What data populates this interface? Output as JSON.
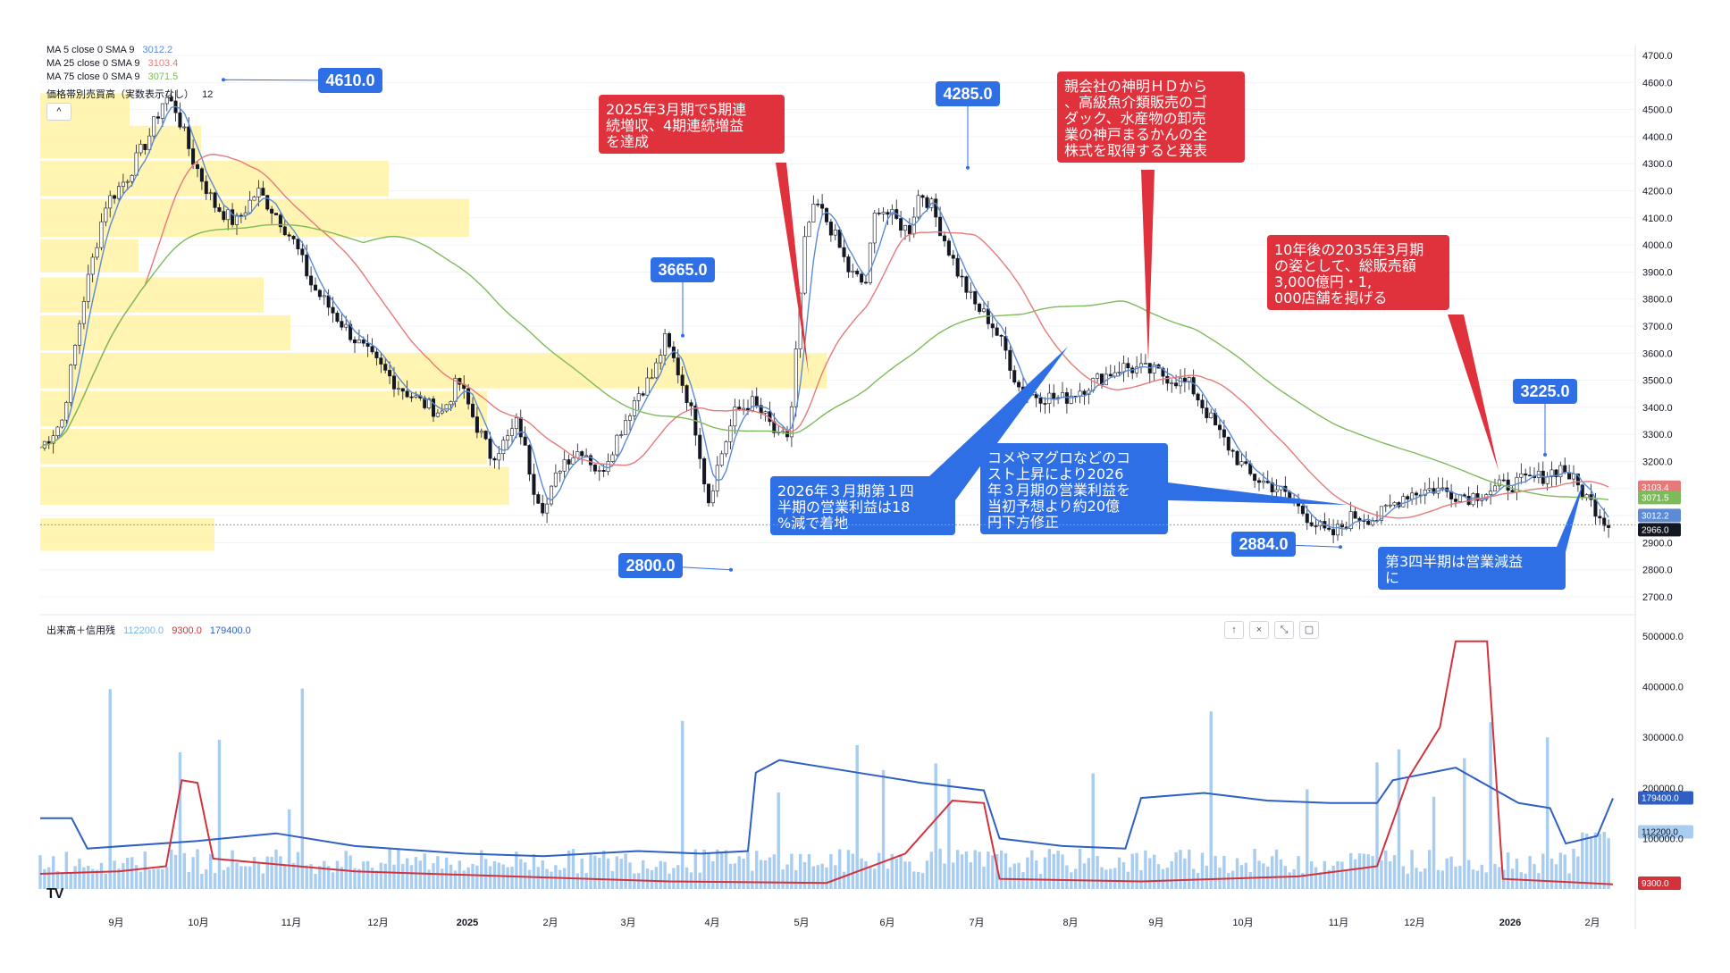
{
  "colors": {
    "up_candle": "#131722",
    "ma5": "#5b8bd6",
    "ma25": "#e67a7a",
    "ma75": "#7dbb5a",
    "volume": "#a9cdf1",
    "credit_buy": "#2f5fc4",
    "credit_sell": "#d2323c",
    "vp_fill": "#fff3a8",
    "callout_red": "#e0323c",
    "callout_blue": "#2f6fe6",
    "price_label_blue": "#2f6fe6"
  },
  "legend": {
    "ma5": {
      "label": "MA 5 close 0 SMA 9",
      "value": "3012.2"
    },
    "ma25": {
      "label": "MA 25 close 0 SMA 9",
      "value": "3103.4"
    },
    "ma75": {
      "label": "MA 75 close 0 SMA 9",
      "value": "3071.5"
    },
    "vp": {
      "label": "価格帯別売買高（実数表示なし）",
      "value": "12"
    },
    "collapse": "^"
  },
  "volume_legend": {
    "label": "出来高＋信用残",
    "v1": "112200.0",
    "v2": "9300.0",
    "v3": "179400.0"
  },
  "pane_buttons": [
    "↑",
    "×",
    "⤡",
    "▢"
  ],
  "logo": "TV",
  "chart_data": {
    "type": "line",
    "price_axis": {
      "min": 2700,
      "max": 4700,
      "step": 100
    },
    "volume_axis": {
      "min": 0,
      "max": 500000,
      "ticks": [
        "500000.0",
        "400000.0",
        "300000.0",
        "200000.0",
        "100000.0"
      ]
    },
    "x_months": [
      "9月",
      "10月",
      "11月",
      "12月",
      "2025",
      "2月",
      "3月",
      "4月",
      "5月",
      "6月",
      "7月",
      "8月",
      "9月",
      "10月",
      "11月",
      "12月",
      "2026",
      "2月"
    ],
    "price_path": [
      {
        "t": 0,
        "v": 3250
      },
      {
        "t": 0.02,
        "v": 3350
      },
      {
        "t": 0.04,
        "v": 3800
      },
      {
        "t": 0.06,
        "v": 4150
      },
      {
        "t": 0.08,
        "v": 4250
      },
      {
        "t": 0.1,
        "v": 4400
      },
      {
        "t": 0.115,
        "v": 4550
      },
      {
        "t": 0.125,
        "v": 4500
      },
      {
        "t": 0.14,
        "v": 4320
      },
      {
        "t": 0.16,
        "v": 4150
      },
      {
        "t": 0.18,
        "v": 4080
      },
      {
        "t": 0.2,
        "v": 4200
      },
      {
        "t": 0.22,
        "v": 4100
      },
      {
        "t": 0.235,
        "v": 4000
      },
      {
        "t": 0.25,
        "v": 3850
      },
      {
        "t": 0.27,
        "v": 3750
      },
      {
        "t": 0.29,
        "v": 3650
      },
      {
        "t": 0.31,
        "v": 3560
      },
      {
        "t": 0.33,
        "v": 3480
      },
      {
        "t": 0.35,
        "v": 3420
      },
      {
        "t": 0.37,
        "v": 3380
      },
      {
        "t": 0.385,
        "v": 3500
      },
      {
        "t": 0.4,
        "v": 3350
      },
      {
        "t": 0.415,
        "v": 3220
      },
      {
        "t": 0.43,
        "v": 3280
      },
      {
        "t": 0.44,
        "v": 3350
      },
      {
        "t": 0.455,
        "v": 3100
      },
      {
        "t": 0.465,
        "v": 3020
      },
      {
        "t": 0.48,
        "v": 3200
      },
      {
        "t": 0.5,
        "v": 3250
      },
      {
        "t": 0.515,
        "v": 3150
      },
      {
        "t": 0.53,
        "v": 3280
      },
      {
        "t": 0.55,
        "v": 3450
      },
      {
        "t": 0.565,
        "v": 3520
      },
      {
        "t": 0.575,
        "v": 3650
      },
      {
        "t": 0.585,
        "v": 3560
      },
      {
        "t": 0.595,
        "v": 3450
      },
      {
        "t": 0.605,
        "v": 3300
      },
      {
        "t": 0.615,
        "v": 3050
      },
      {
        "t": 0.625,
        "v": 3200
      },
      {
        "t": 0.64,
        "v": 3380
      },
      {
        "t": 0.655,
        "v": 3420
      },
      {
        "t": 0.67,
        "v": 3350
      },
      {
        "t": 0.68,
        "v": 3280
      },
      {
        "t": 0.69,
        "v": 3300
      },
      {
        "t": 0.698,
        "v": 3700
      },
      {
        "t": 0.705,
        "v": 4050
      },
      {
        "t": 0.715,
        "v": 4150
      },
      {
        "t": 0.73,
        "v": 4050
      },
      {
        "t": 0.745,
        "v": 3900
      },
      {
        "t": 0.76,
        "v": 3850
      },
      {
        "t": 0.77,
        "v": 4150
      },
      {
        "t": 0.785,
        "v": 4100
      },
      {
        "t": 0.8,
        "v": 4050
      },
      {
        "t": 0.81,
        "v": 4200
      },
      {
        "t": 0.82,
        "v": 4150
      },
      {
        "t": 0.83,
        "v": 4050
      },
      {
        "t": 0.845,
        "v": 3900
      },
      {
        "t": 0.86,
        "v": 3780
      },
      {
        "t": 0.875,
        "v": 3720
      },
      {
        "t": 0.89,
        "v": 3600
      },
      {
        "t": 0.9,
        "v": 3480
      },
      {
        "t": 0.91,
        "v": 3450
      }
    ],
    "price_path_note": "",
    "price_labels": [
      {
        "text": "4610.0"
      },
      {
        "text": "3665.0"
      },
      {
        "text": "2800.0"
      },
      {
        "text": "4285.0"
      },
      {
        "text": "2884.0"
      },
      {
        "text": "3225.0"
      }
    ],
    "axis_badges": [
      {
        "text": "3103.4",
        "color": "#e67a7a"
      },
      {
        "text": "3071.5",
        "color": "#7dbb5a"
      },
      {
        "text": "3012.2",
        "color": "#5b8bd6"
      },
      {
        "text": "2966.0",
        "color": "#131722"
      },
      {
        "text": "179400.0",
        "color": "#2f5fc4"
      },
      {
        "text": "112200.0",
        "color": "#a9cdf1"
      },
      {
        "text": "9300.0",
        "color": "#d2323c"
      }
    ],
    "callouts": [
      {
        "text": "2025年3月期で5期連\n続増収、4期連続増益\nを達成",
        "color": "red"
      },
      {
        "text": "親会社の神明ＨＤから\n、高級魚介類販売のゴ\nダック、水産物の卸売\n業の神戸まるかんの全\n株式を取得すると発表",
        "color": "red"
      },
      {
        "text": "10年後の2035年3月期\nの姿として、総販売額\n3,000億円・1,\n000店舗を掲げる",
        "color": "red"
      },
      {
        "text": "2026年３月期第１四\n半期の営業利益は18\n%減で着地",
        "color": "blue"
      },
      {
        "text": "コメやマグロなどのコ\nスト上昇により2026\n年３月期の営業利益を\n当初予想より約20億\n円下方修正",
        "color": "blue"
      },
      {
        "text": "第3四半期は営業減益\nに",
        "color": "blue"
      }
    ]
  }
}
